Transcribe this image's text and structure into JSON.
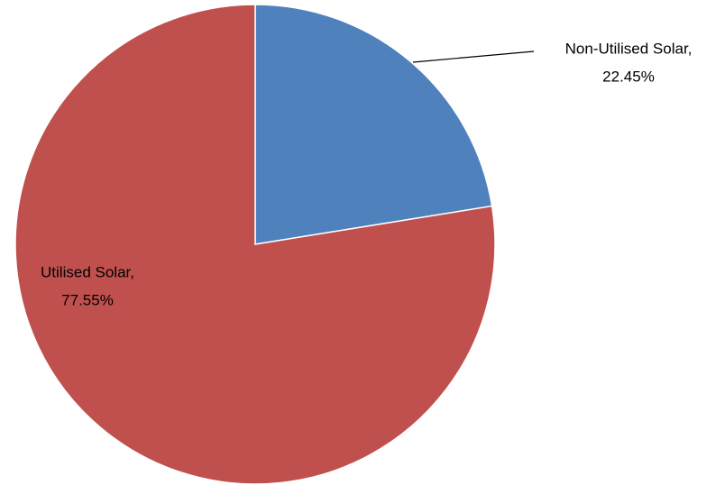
{
  "chart_data": {
    "type": "pie",
    "categories": [
      "Non-Utilised Solar,",
      "Utilised Solar,"
    ],
    "values": [
      22.45,
      77.55
    ],
    "value_labels": [
      "22.45%",
      "77.55%"
    ],
    "colors": [
      "#4f81bd",
      "#c0504d"
    ]
  }
}
